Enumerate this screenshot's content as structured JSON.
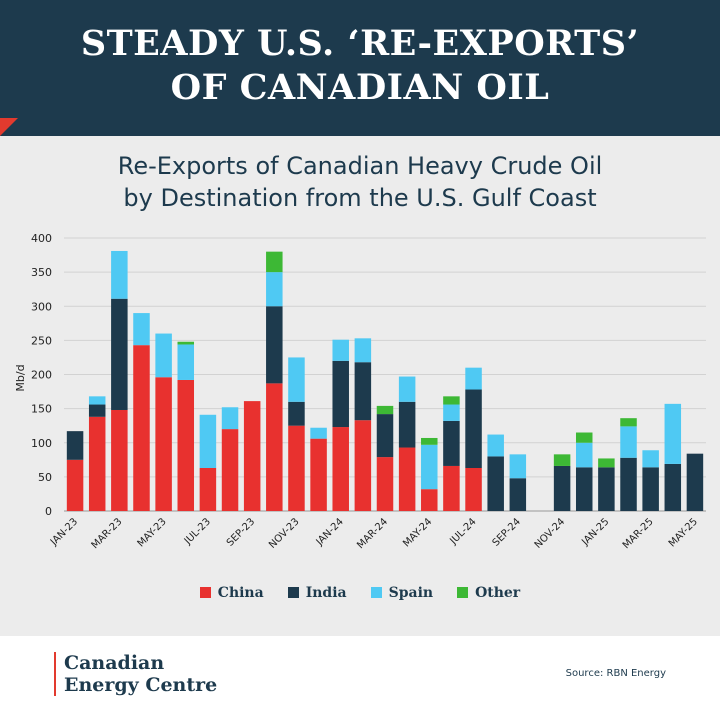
{
  "header": {
    "line1": "STEADY U.S. ‘RE-EXPORTS’",
    "line2": "OF CANADIAN OIL"
  },
  "chart_data": {
    "type": "bar",
    "stacked": true,
    "title": "Re-Exports of Canadian Heavy Crude Oil",
    "subtitle": "by Destination from the U.S. Gulf Coast",
    "ylabel": "Mb/d",
    "ylim": [
      0,
      400
    ],
    "yticks": [
      0,
      50,
      100,
      150,
      200,
      250,
      300,
      350,
      400
    ],
    "grid": true,
    "legend_position": "bottom",
    "categories": [
      "JAN-23",
      "FEB-23",
      "MAR-23",
      "APR-23",
      "MAY-23",
      "JUN-23",
      "JUL-23",
      "AUG-23",
      "SEP-23",
      "OCT-23",
      "NOV-23",
      "DEC-23",
      "JAN-24",
      "FEB-24",
      "MAR-24",
      "APR-24",
      "MAY-24",
      "JUN-24",
      "JUL-24",
      "AUG-24",
      "SEP-24",
      "OCT-24",
      "NOV-24",
      "DEC-24",
      "JAN-25",
      "FEB-25",
      "MAR-25",
      "APR-25",
      "MAY-25"
    ],
    "x_tick_labels": [
      "JAN-23",
      "MAR-23",
      "MAY-23",
      "JUL-23",
      "SEP-23",
      "NOV-23",
      "JAN-24",
      "MAR-24",
      "MAY-24",
      "JUL-24",
      "SEP-24",
      "NOV-24",
      "JAN-25",
      "MAR-25",
      "MAY-25"
    ],
    "series": [
      {
        "name": "China",
        "color": "#e8312f",
        "values": [
          75,
          138,
          148,
          243,
          196,
          192,
          63,
          120,
          161,
          187,
          125,
          106,
          123,
          133,
          79,
          93,
          32,
          66,
          63,
          0,
          0,
          0,
          0,
          0,
          0,
          0,
          0,
          0,
          0
        ]
      },
      {
        "name": "India",
        "color": "#1d3a4d",
        "values": [
          42,
          18,
          163,
          0,
          0,
          0,
          0,
          0,
          0,
          113,
          35,
          0,
          97,
          85,
          63,
          67,
          0,
          66,
          115,
          80,
          48,
          0,
          66,
          64,
          64,
          78,
          64,
          69,
          84
        ]
      },
      {
        "name": "Spain",
        "color": "#4fc9f3",
        "values": [
          0,
          12,
          70,
          47,
          64,
          52,
          78,
          32,
          0,
          50,
          65,
          16,
          31,
          35,
          0,
          37,
          65,
          24,
          32,
          32,
          35,
          0,
          0,
          36,
          0,
          46,
          25,
          88,
          0
        ]
      },
      {
        "name": "Other",
        "color": "#3db835",
        "values": [
          0,
          0,
          0,
          0,
          0,
          4,
          0,
          0,
          0,
          30,
          0,
          0,
          0,
          0,
          12,
          0,
          10,
          12,
          0,
          0,
          0,
          0,
          17,
          15,
          13,
          12,
          0,
          0,
          0
        ]
      }
    ]
  },
  "footer": {
    "logo_line1": "Canadian",
    "logo_line2": "Energy Centre",
    "source": "Source: RBN Energy"
  }
}
